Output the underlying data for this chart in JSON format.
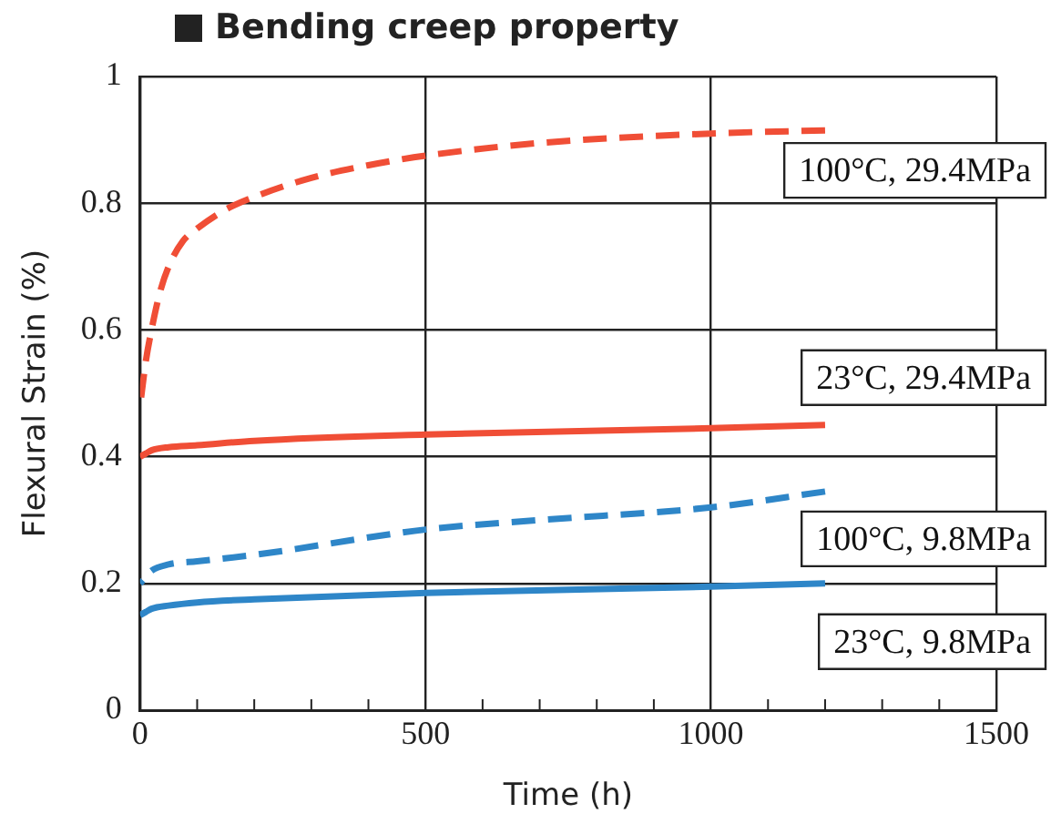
{
  "chart_data": {
    "type": "line",
    "title": "Bending creep property",
    "xlabel": "Time (h)",
    "ylabel": "Flexural Strain (%)",
    "xlim": [
      0,
      1500
    ],
    "xticks": [
      0,
      {
        "value": 100,
        "label": null
      },
      {
        "value": 200,
        "label": null
      },
      {
        "value": 300,
        "label": null
      },
      {
        "value": 400,
        "label": null
      },
      500,
      {
        "value": 600,
        "label": null
      },
      {
        "value": 700,
        "label": null
      },
      {
        "value": 800,
        "label": null
      },
      {
        "value": 900,
        "label": null
      },
      1000,
      {
        "value": 1100,
        "label": null
      },
      {
        "value": 1200,
        "label": null
      },
      {
        "value": 1300,
        "label": null
      },
      {
        "value": 1400,
        "label": null
      },
      1500
    ],
    "ylim": [
      0,
      1
    ],
    "yticks": [
      0,
      0.2,
      0.4,
      0.6,
      0.8,
      1
    ],
    "grid": true,
    "legend": false,
    "marker": "none",
    "series": [
      {
        "name": "100°C, 29.4MPa",
        "color": "#f04e36",
        "line_style": "dashed",
        "x": [
          0,
          10,
          20,
          35,
          50,
          75,
          100,
          150,
          200,
          300,
          400,
          500,
          700,
          1000,
          1200
        ],
        "values": [
          0.48,
          0.55,
          0.6,
          0.66,
          0.7,
          0.74,
          0.76,
          0.79,
          0.81,
          0.84,
          0.86,
          0.875,
          0.895,
          0.91,
          0.915
        ]
      },
      {
        "name": "23°C, 29.4MPa",
        "color": "#f04e36",
        "line_style": "solid",
        "x": [
          0,
          10,
          20,
          50,
          100,
          200,
          500,
          1000,
          1200
        ],
        "values": [
          0.4,
          0.405,
          0.41,
          0.415,
          0.418,
          0.425,
          0.435,
          0.445,
          0.45
        ]
      },
      {
        "name": "100°C, 9.8MPa",
        "color": "#2e86c8",
        "line_style": "dashed",
        "x": [
          0,
          10,
          20,
          50,
          100,
          200,
          500,
          700,
          1000,
          1200
        ],
        "values": [
          0.2,
          0.21,
          0.22,
          0.23,
          0.235,
          0.245,
          0.285,
          0.3,
          0.32,
          0.345
        ]
      },
      {
        "name": "23°C, 9.8MPa",
        "color": "#2e86c8",
        "line_style": "solid",
        "x": [
          0,
          10,
          20,
          50,
          100,
          200,
          500,
          1000,
          1200
        ],
        "values": [
          0.15,
          0.155,
          0.16,
          0.165,
          0.17,
          0.175,
          0.185,
          0.195,
          0.2
        ]
      }
    ]
  }
}
